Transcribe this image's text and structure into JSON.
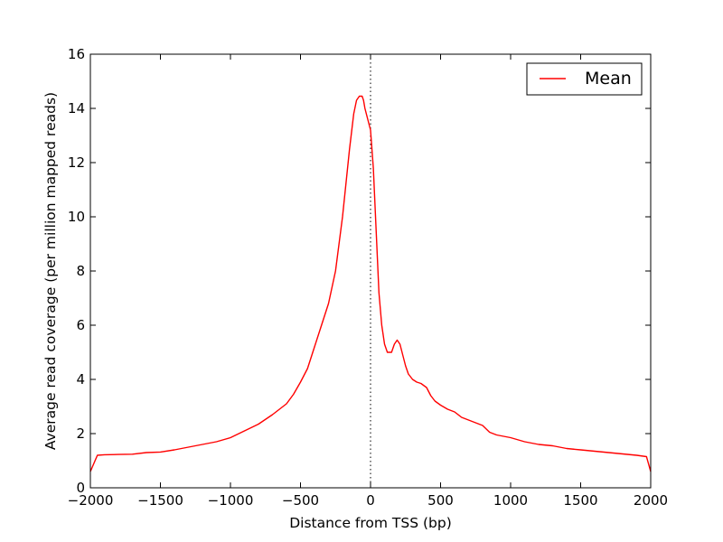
{
  "chart_data": {
    "type": "line",
    "xlabel": "Distance from TSS (bp)",
    "ylabel": "Average read coverage (per million mapped reads)",
    "xlim": [
      -2000,
      2000
    ],
    "ylim": [
      0,
      16
    ],
    "x_ticks": [
      -2000,
      -1500,
      -1000,
      -500,
      0,
      500,
      1000,
      1500,
      2000
    ],
    "x_tick_labels": [
      "−2000",
      "−1500",
      "−1000",
      "−500",
      "0",
      "500",
      "1000",
      "1500",
      "2000"
    ],
    "y_ticks": [
      0,
      2,
      4,
      6,
      8,
      10,
      12,
      14,
      16
    ],
    "y_tick_labels": [
      "0",
      "2",
      "4",
      "6",
      "8",
      "10",
      "12",
      "14",
      "16"
    ],
    "grid": false,
    "legend_position": "top-right",
    "reference_line": {
      "x": 0,
      "style": "dotted",
      "color": "#000000"
    },
    "series": [
      {
        "name": "Mean",
        "color": "#ff0000",
        "x": [
          -2000,
          -1950,
          -1900,
          -1800,
          -1700,
          -1600,
          -1500,
          -1400,
          -1300,
          -1200,
          -1100,
          -1000,
          -900,
          -800,
          -700,
          -600,
          -550,
          -500,
          -450,
          -400,
          -350,
          -300,
          -250,
          -200,
          -150,
          -120,
          -100,
          -80,
          -60,
          -50,
          -40,
          -20,
          0,
          20,
          40,
          60,
          80,
          100,
          120,
          150,
          170,
          190,
          210,
          230,
          250,
          270,
          300,
          330,
          360,
          400,
          430,
          460,
          500,
          550,
          600,
          650,
          700,
          800,
          850,
          900,
          1000,
          1100,
          1200,
          1300,
          1400,
          1500,
          1600,
          1700,
          1800,
          1900,
          1970,
          2000
        ],
        "y": [
          0.6,
          1.2,
          1.22,
          1.23,
          1.24,
          1.3,
          1.32,
          1.4,
          1.5,
          1.6,
          1.7,
          1.85,
          2.1,
          2.35,
          2.7,
          3.1,
          3.45,
          3.9,
          4.4,
          5.2,
          6.0,
          6.8,
          8.0,
          10.0,
          12.5,
          13.8,
          14.3,
          14.45,
          14.45,
          14.3,
          14.0,
          13.6,
          13.2,
          11.8,
          9.5,
          7.2,
          6.0,
          5.3,
          5.0,
          5.0,
          5.3,
          5.45,
          5.3,
          4.9,
          4.5,
          4.2,
          4.0,
          3.9,
          3.85,
          3.7,
          3.4,
          3.2,
          3.05,
          2.9,
          2.8,
          2.6,
          2.5,
          2.3,
          2.05,
          1.95,
          1.85,
          1.7,
          1.6,
          1.55,
          1.45,
          1.4,
          1.35,
          1.3,
          1.25,
          1.2,
          1.15,
          0.6
        ]
      }
    ]
  }
}
